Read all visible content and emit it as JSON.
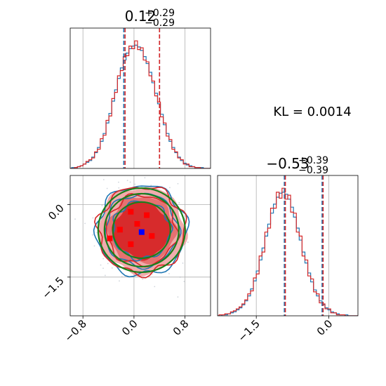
{
  "chart_data": {
    "type": "corner",
    "colors": {
      "blue": "#1f77b4",
      "red": "#d62728",
      "green": "#1a7f1a",
      "red_fill_light": "#f0a3a3",
      "red_fill_dark": "#d62728",
      "grid": "#b0b0b0"
    },
    "annotation": "KL = 0.0014",
    "param1": {
      "title_value": "0.12",
      "title_plus": "+0.29",
      "title_minus": "−0.29",
      "xlim": [
        -1.0,
        1.2
      ],
      "ticks": [
        -0.8,
        0.0,
        0.8
      ],
      "tick_labels": [
        "−0.8",
        "0.0",
        "0.8"
      ],
      "bin_edges_range": [
        -0.86,
        1.16
      ],
      "bins": 50,
      "quantiles_blue": [
        -0.16,
        0.4
      ],
      "quantiles_red": [
        -0.14,
        0.4
      ],
      "hist_blue": [
        0,
        1,
        1,
        2,
        3,
        5,
        7,
        9,
        13,
        18,
        24,
        31,
        40,
        52,
        63,
        77,
        90,
        103,
        115,
        124,
        132,
        137,
        140,
        141,
        139,
        135,
        128,
        120,
        110,
        98,
        86,
        74,
        62,
        50,
        40,
        31,
        24,
        18,
        13,
        9,
        6,
        4,
        3,
        2,
        1,
        1,
        1,
        0,
        0,
        0
      ],
      "hist_red": [
        0,
        0,
        1,
        2,
        3,
        5,
        8,
        10,
        12,
        19,
        22,
        34,
        38,
        55,
        60,
        80,
        87,
        106,
        112,
        128,
        129,
        140,
        137,
        146,
        136,
        138,
        124,
        122,
        106,
        100,
        83,
        76,
        59,
        52,
        37,
        33,
        22,
        19,
        12,
        10,
        5,
        5,
        2,
        2,
        1,
        1,
        0,
        0,
        0,
        0
      ]
    },
    "param2": {
      "title_value": "−0.53",
      "title_plus": "+0.39",
      "title_minus": "−0.39",
      "xlim": [
        -2.3,
        0.6
      ],
      "ticks": [
        -1.5,
        0.0
      ],
      "tick_labels": [
        "−1.5",
        "0.0"
      ],
      "quantiles_blue": [
        -0.92,
        -0.14
      ],
      "quantiles_red": [
        -0.9,
        -0.12
      ],
      "bins": 50,
      "hist_blue": [
        0,
        0,
        1,
        1,
        2,
        3,
        4,
        6,
        8,
        11,
        15,
        20,
        27,
        35,
        45,
        56,
        68,
        80,
        92,
        103,
        112,
        119,
        123,
        124,
        122,
        117,
        109,
        99,
        88,
        76,
        64,
        53,
        43,
        34,
        26,
        20,
        15,
        11,
        8,
        6,
        4,
        3,
        2,
        1,
        1,
        1,
        0,
        0,
        0,
        0
      ],
      "hist_red": [
        0,
        1,
        1,
        2,
        2,
        4,
        5,
        7,
        9,
        12,
        16,
        22,
        25,
        38,
        42,
        60,
        64,
        84,
        88,
        108,
        108,
        124,
        118,
        128,
        117,
        121,
        104,
        103,
        84,
        80,
        60,
        56,
        40,
        37,
        24,
        22,
        13,
        12,
        7,
        7,
        3,
        3,
        1,
        1,
        1,
        0,
        0,
        0,
        0,
        0
      ]
    },
    "joint": {
      "xlim": [
        -1.0,
        1.2
      ],
      "ylim": [
        -2.3,
        0.6
      ],
      "yticks": [
        0.0,
        -1.5
      ],
      "ytick_labels": [
        "0.0",
        "−1.5"
      ],
      "center": [
        0.12,
        -0.53
      ],
      "red_points": [
        {
          "x": -0.05,
          "y": -0.15
        },
        {
          "x": 0.2,
          "y": -0.22
        },
        {
          "x": 0.05,
          "y": -0.4
        },
        {
          "x": -0.22,
          "y": -0.52
        },
        {
          "x": -0.38,
          "y": -0.7
        },
        {
          "x": 0.28,
          "y": -0.65
        },
        {
          "x": -0.05,
          "y": -0.82
        }
      ],
      "blue_points": [
        {
          "x": 0.12,
          "y": -0.57
        }
      ]
    }
  }
}
